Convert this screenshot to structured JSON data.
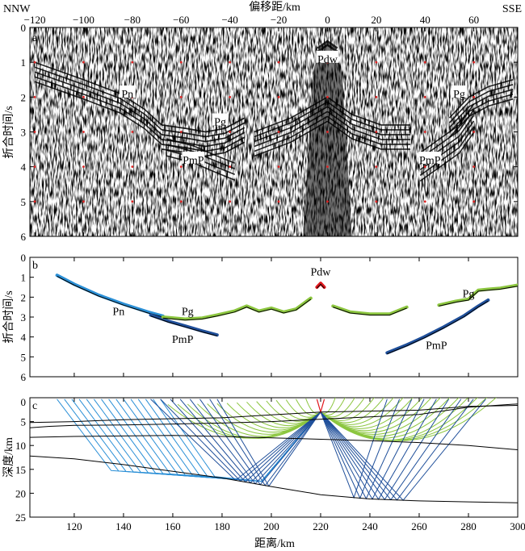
{
  "chart_data": [
    {
      "panel": "a",
      "type": "heatmap",
      "title": "",
      "top_axis_label": "偏移距/km",
      "ylabel": "折合时间/s",
      "left_corner": "NNW",
      "right_corner": "SSE",
      "xlim": [
        -122,
        78
      ],
      "ylim": [
        0,
        6
      ],
      "x_ticks": [
        -120,
        -100,
        -80,
        -60,
        -40,
        -20,
        0,
        20,
        40,
        60
      ],
      "y_ticks": [
        0,
        1,
        2,
        3,
        4,
        5,
        6
      ],
      "annotations": [
        {
          "text": "Pdw",
          "x": 0,
          "y": 0.9
        },
        {
          "text": "Pn",
          "x": -82,
          "y": 1.9
        },
        {
          "text": "Pg",
          "x": -44,
          "y": 2.7
        },
        {
          "text": "PmP",
          "x": -55,
          "y": 3.8
        },
        {
          "text": "PmP",
          "x": 42,
          "y": 3.8
        },
        {
          "text": "Pg",
          "x": 54,
          "y": 1.9
        }
      ]
    },
    {
      "panel": "b",
      "type": "line",
      "ylabel": "折合时间/s",
      "xlim": [
        102,
        300
      ],
      "ylim": [
        0,
        6
      ],
      "y_ticks": [
        0,
        1,
        2,
        3,
        4,
        5,
        6
      ],
      "colors": {
        "Pn": "#2a8fd6",
        "Pg": "#8cc63f",
        "PmP": "#1f4f9a",
        "Pdw": "#e0161c",
        "calc": "#000000"
      },
      "series": [
        {
          "name": "Pn",
          "x": [
            113,
            120,
            130,
            140,
            150,
            156
          ],
          "y": [
            0.9,
            1.35,
            1.9,
            2.35,
            2.75,
            2.95
          ]
        },
        {
          "name": "PmP",
          "x": [
            151,
            158,
            165,
            172,
            178
          ],
          "y": [
            2.9,
            3.2,
            3.45,
            3.7,
            3.9
          ]
        },
        {
          "name": "Pg",
          "x": [
            156,
            165,
            172,
            178,
            185,
            190,
            195,
            200,
            205,
            210,
            216
          ],
          "y": [
            3.0,
            3.1,
            3.05,
            2.9,
            2.7,
            2.45,
            2.7,
            2.55,
            2.75,
            2.6,
            2.05
          ]
        },
        {
          "name": "Pdw",
          "x": [
            218.5,
            220,
            221.5
          ],
          "y": [
            1.5,
            1.3,
            1.5
          ]
        },
        {
          "name": "Pg",
          "x": [
            225,
            232,
            240,
            248,
            255
          ],
          "y": [
            2.45,
            2.75,
            2.85,
            2.85,
            2.5
          ]
        },
        {
          "name": "PmP",
          "x": [
            247,
            255,
            262,
            270,
            278,
            284,
            288
          ],
          "y": [
            4.8,
            4.4,
            4.0,
            3.5,
            2.95,
            2.45,
            2.15
          ]
        },
        {
          "name": "Pg",
          "x": [
            268,
            275,
            280,
            284,
            288,
            293,
            300
          ],
          "y": [
            2.4,
            2.2,
            2.1,
            1.65,
            1.6,
            1.55,
            1.4
          ]
        }
      ],
      "annotations": [
        {
          "text": "Pdw",
          "x": 220,
          "y": 0.7
        },
        {
          "text": "Pn",
          "x": 138,
          "y": 2.7
        },
        {
          "text": "Pg",
          "x": 166,
          "y": 2.7
        },
        {
          "text": "PmP",
          "x": 164,
          "y": 4.1
        },
        {
          "text": "PmP",
          "x": 267,
          "y": 4.4
        },
        {
          "text": "Pg",
          "x": 280,
          "y": 1.8
        }
      ]
    },
    {
      "panel": "c",
      "type": "line",
      "xlabel": "距离/km",
      "ylabel": "深度/km",
      "xlim": [
        102,
        300
      ],
      "ylim": [
        0,
        25
      ],
      "x_ticks": [
        120,
        140,
        160,
        180,
        200,
        220,
        240,
        260,
        280,
        300
      ],
      "y_ticks": [
        5,
        10,
        15,
        20,
        25
      ],
      "source_x": 220,
      "source_depth": 3,
      "interfaces": [
        {
          "x": [
            102,
            120,
            140,
            160,
            180,
            200,
            220,
            240,
            260,
            280,
            300
          ],
          "y": [
            5.2,
            5.0,
            4.6,
            4.4,
            4.2,
            3.6,
            3.0,
            2.8,
            2.6,
            1.8,
            1.6
          ]
        },
        {
          "x": [
            102,
            110,
            120,
            140,
            160,
            180,
            200,
            220,
            240,
            260,
            280,
            300
          ],
          "y": [
            6.3,
            6.0,
            5.8,
            5.7,
            5.5,
            5.3,
            5.0,
            4.5,
            4.0,
            3.5,
            2.0,
            1.3
          ]
        },
        {
          "x": [
            102,
            120,
            140,
            160,
            180,
            200,
            220,
            240,
            260,
            280,
            300
          ],
          "y": [
            8.3,
            8.1,
            8.0,
            7.9,
            8.1,
            8.4,
            8.7,
            9.0,
            9.4,
            10.0,
            10.9
          ]
        },
        {
          "x": [
            102,
            120,
            140,
            160,
            180,
            200,
            220,
            240,
            260,
            280,
            300
          ],
          "y": [
            12.2,
            12.8,
            14.0,
            15.4,
            16.8,
            18.6,
            20.3,
            21.2,
            21.6,
            21.8,
            22.0
          ]
        }
      ],
      "rays": [
        {
          "name": "Pn",
          "color": "#2a8fd6",
          "x_end": [
            113,
            116,
            119,
            122,
            125,
            128,
            131,
            134,
            137,
            140,
            143,
            146,
            149,
            152,
            155
          ],
          "bottom_depth": 17.5
        },
        {
          "name": "Pg",
          "color": "#8cc63f",
          "x_end": [
            158,
            162,
            166,
            170,
            174,
            178,
            182,
            186,
            190,
            194,
            198,
            202,
            206,
            210,
            214,
            226,
            230,
            234,
            238,
            242,
            246,
            250,
            254,
            258,
            262,
            266,
            270,
            274,
            278,
            282,
            286,
            290,
            294
          ]
        },
        {
          "name": "PmP",
          "color": "#1f4f9a",
          "x_end": [
            151,
            155,
            159,
            163,
            167,
            171,
            175,
            178,
            247,
            252,
            257,
            262,
            267,
            272,
            277,
            282,
            287
          ]
        }
      ]
    }
  ]
}
